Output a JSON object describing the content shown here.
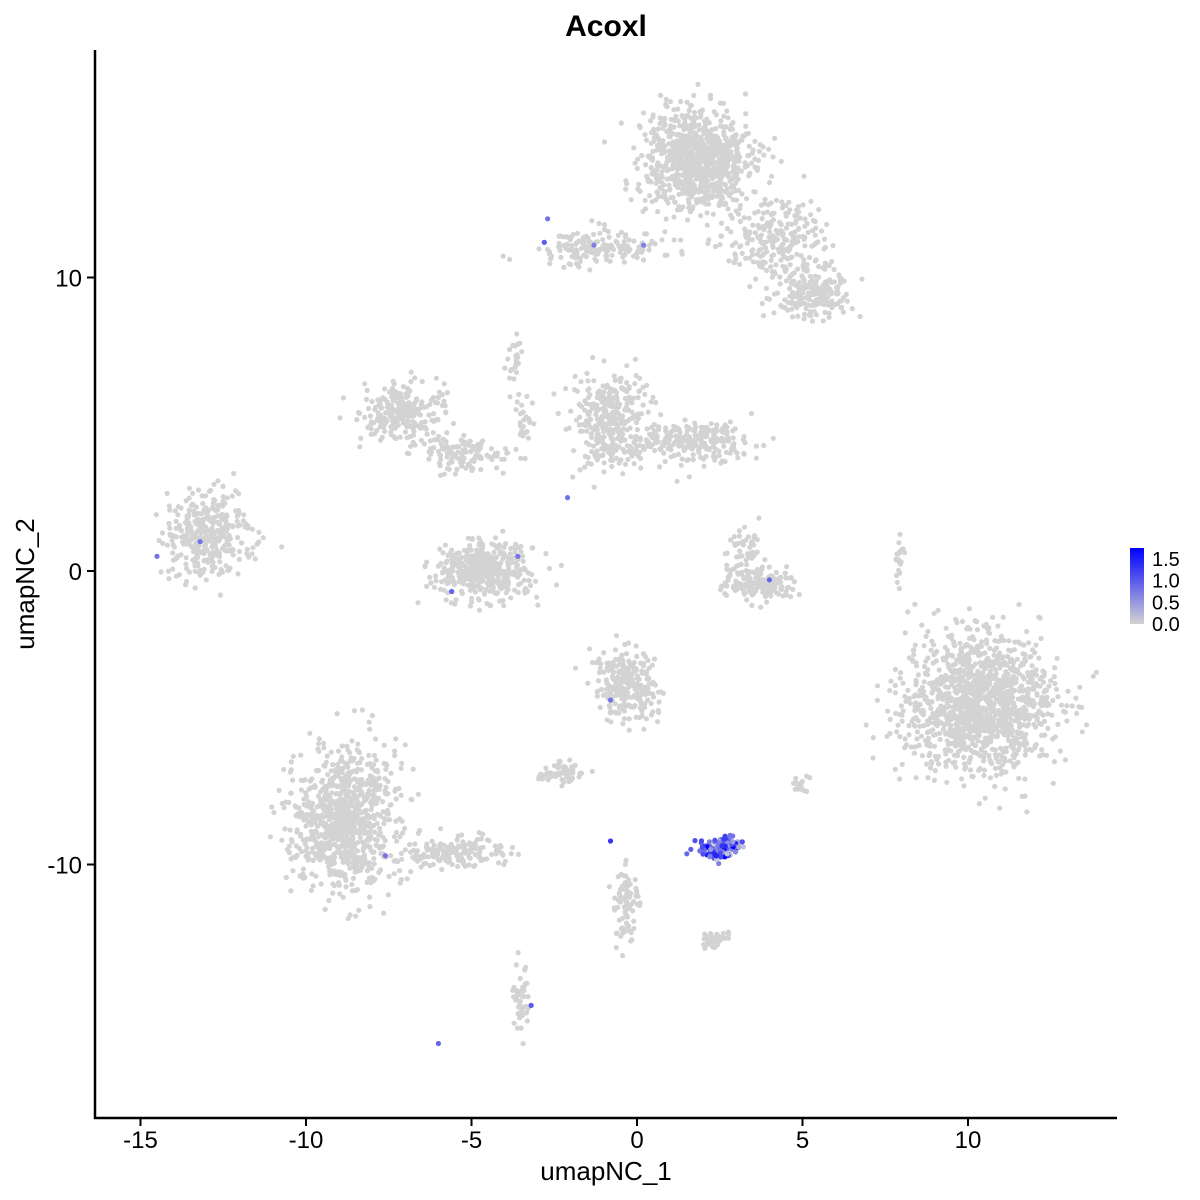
{
  "chart_data": {
    "type": "scatter",
    "title": "Acoxl",
    "xlabel": "umapNC_1",
    "ylabel": "umapNC_2",
    "xlim": [
      -16.4,
      14.5
    ],
    "ylim": [
      -18.6,
      17.75
    ],
    "xticks": [
      -15,
      -10,
      -5,
      0,
      5,
      10
    ],
    "yticks": [
      -10,
      0,
      10
    ],
    "grid": false,
    "legend": {
      "placement": "right",
      "type": "colorbar",
      "ticks": [
        "0.0",
        "0.5",
        "1.0",
        "1.5"
      ],
      "range": [
        0,
        1.75
      ],
      "low_color": "#d3d3d3",
      "high_color": "#0000ff"
    },
    "clusters": [
      {
        "cx": 1.8,
        "cy": 14.0,
        "sx": 1.0,
        "sy": 1.1,
        "n": 900,
        "value": 0
      },
      {
        "cx": 4.3,
        "cy": 11.2,
        "sx": 1.0,
        "sy": 0.9,
        "n": 250,
        "value": 0
      },
      {
        "cx": 5.3,
        "cy": 9.5,
        "sx": 0.7,
        "sy": 0.5,
        "n": 200,
        "value": 0
      },
      {
        "cx": -1.2,
        "cy": 11.0,
        "sx": 1.2,
        "sy": 0.35,
        "n": 160,
        "value": 0
      },
      {
        "cx": -13.0,
        "cy": 1.2,
        "sx": 0.8,
        "sy": 0.8,
        "n": 350,
        "value": 0
      },
      {
        "cx": -7.1,
        "cy": 5.4,
        "sx": 0.8,
        "sy": 0.6,
        "n": 250,
        "value": 0
      },
      {
        "cx": -5.2,
        "cy": 4.0,
        "sx": 0.9,
        "sy": 0.35,
        "n": 120,
        "value": 0
      },
      {
        "cx": -4.6,
        "cy": 0.0,
        "sx": 0.9,
        "sy": 0.6,
        "n": 450,
        "value": 0
      },
      {
        "cx": -0.8,
        "cy": 5.1,
        "sx": 0.7,
        "sy": 1.0,
        "n": 330,
        "value": 0
      },
      {
        "cx": 1.8,
        "cy": 4.4,
        "sx": 1.0,
        "sy": 0.45,
        "n": 220,
        "value": 0
      },
      {
        "cx": 3.6,
        "cy": -0.4,
        "sx": 0.7,
        "sy": 0.35,
        "n": 160,
        "value": 0
      },
      {
        "cx": 3.3,
        "cy": 0.7,
        "sx": 0.3,
        "sy": 0.45,
        "n": 50,
        "value": 0
      },
      {
        "cx": 10.3,
        "cy": -4.6,
        "sx": 1.4,
        "sy": 1.5,
        "n": 1300,
        "value": 0
      },
      {
        "cx": -8.8,
        "cy": -8.4,
        "sx": 1.0,
        "sy": 1.5,
        "n": 900,
        "value": 0
      },
      {
        "cx": -5.4,
        "cy": -9.6,
        "sx": 1.0,
        "sy": 0.35,
        "n": 150,
        "value": 0
      },
      {
        "cx": -0.3,
        "cy": -3.9,
        "sx": 0.6,
        "sy": 0.8,
        "n": 250,
        "value": 0
      },
      {
        "cx": -2.3,
        "cy": -6.9,
        "sx": 0.4,
        "sy": 0.25,
        "n": 60,
        "value": 0
      },
      {
        "cx": -0.3,
        "cy": -11.2,
        "sx": 0.25,
        "sy": 0.9,
        "n": 80,
        "value": 0
      },
      {
        "cx": 2.3,
        "cy": -12.6,
        "sx": 0.3,
        "sy": 0.2,
        "n": 40,
        "value": 0
      },
      {
        "cx": -3.5,
        "cy": -14.6,
        "sx": 0.15,
        "sy": 0.6,
        "n": 45,
        "value": 0
      },
      {
        "cx": 7.9,
        "cy": 0.4,
        "sx": 0.1,
        "sy": 0.5,
        "n": 20,
        "value": 0
      },
      {
        "cx": 5.0,
        "cy": -7.3,
        "sx": 0.2,
        "sy": 0.2,
        "n": 20,
        "value": 0
      },
      {
        "cx": -3.7,
        "cy": 7.0,
        "sx": 0.15,
        "sy": 0.5,
        "n": 25,
        "value": 0
      },
      {
        "cx": -3.4,
        "cy": 5.0,
        "sx": 0.15,
        "sy": 0.6,
        "n": 25,
        "value": 0
      },
      {
        "cx": 2.5,
        "cy": -9.4,
        "sx": 0.4,
        "sy": 0.22,
        "n": 130,
        "value": 0.9
      }
    ],
    "expressing_cells": [
      {
        "x": -2.7,
        "y": 12.0,
        "v": 0.8
      },
      {
        "x": -2.8,
        "y": 11.2,
        "v": 1.0
      },
      {
        "x": -1.3,
        "y": 11.1,
        "v": 0.7
      },
      {
        "x": 0.2,
        "y": 11.1,
        "v": 0.7
      },
      {
        "x": -13.2,
        "y": 1.0,
        "v": 0.8
      },
      {
        "x": -14.5,
        "y": 0.5,
        "v": 0.8
      },
      {
        "x": -5.6,
        "y": -0.7,
        "v": 0.9
      },
      {
        "x": -3.6,
        "y": 0.5,
        "v": 0.8
      },
      {
        "x": -2.1,
        "y": 2.5,
        "v": 0.8
      },
      {
        "x": 4.0,
        "y": -0.3,
        "v": 0.9
      },
      {
        "x": -0.8,
        "y": -4.4,
        "v": 0.8
      },
      {
        "x": -0.8,
        "y": -9.2,
        "v": 1.3
      },
      {
        "x": -7.6,
        "y": -9.7,
        "v": 0.8
      },
      {
        "x": -3.2,
        "y": -14.8,
        "v": 1.0
      },
      {
        "x": -6.0,
        "y": -16.1,
        "v": 0.9
      }
    ]
  }
}
